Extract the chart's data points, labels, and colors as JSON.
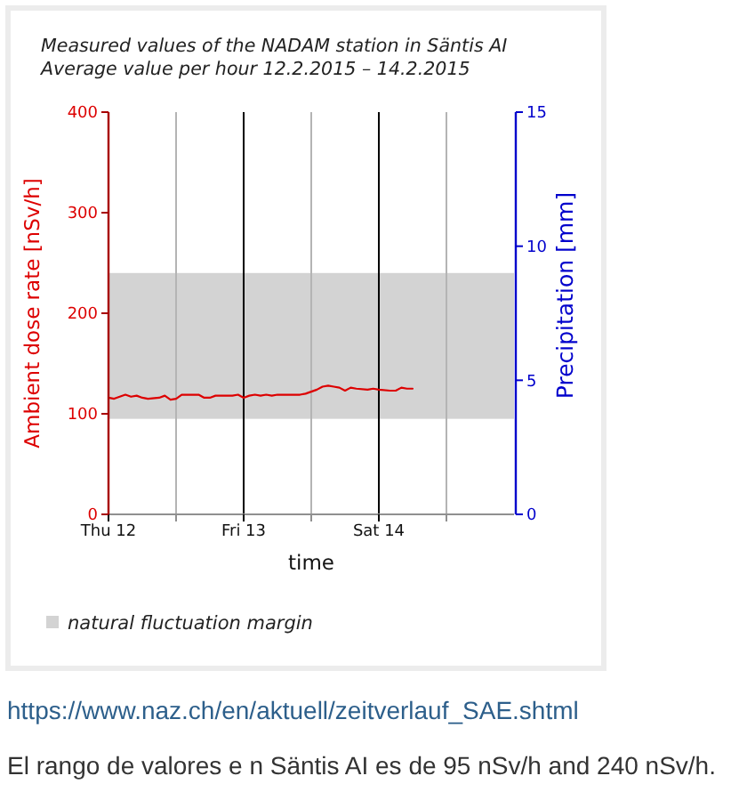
{
  "chart_data": {
    "type": "line",
    "title": "Measured values of the NADAM station in Säntis AI",
    "subtitle": "Average value per hour 12.2.2015 – 14.2.2015",
    "xlabel": "time",
    "ylabel": "Ambient dose rate [nSv/h]",
    "y2label": "Precipitation [mm]",
    "x": [
      "2015-02-12T00:00",
      "2015-02-12T01:00",
      "2015-02-12T02:00",
      "2015-02-12T03:00",
      "2015-02-12T04:00",
      "2015-02-12T05:00",
      "2015-02-12T06:00",
      "2015-02-12T07:00",
      "2015-02-12T09:00",
      "2015-02-12T10:00",
      "2015-02-12T11:00",
      "2015-02-12T12:00",
      "2015-02-12T13:00",
      "2015-02-12T14:00",
      "2015-02-12T16:00",
      "2015-02-12T17:00",
      "2015-02-12T18:00",
      "2015-02-12T19:00",
      "2015-02-12T22:00",
      "2015-02-12T23:00",
      "2015-02-13T00:00",
      "2015-02-13T01:00",
      "2015-02-13T02:00",
      "2015-02-13T03:00",
      "2015-02-13T04:00",
      "2015-02-13T05:00",
      "2015-02-13T06:00",
      "2015-02-13T08:00",
      "2015-02-13T09:00",
      "2015-02-13T10:00",
      "2015-02-13T11:00",
      "2015-02-13T13:00",
      "2015-02-13T14:00",
      "2015-02-13T15:00",
      "2015-02-13T16:00",
      "2015-02-13T17:00",
      "2015-02-13T18:00",
      "2015-02-13T19:00",
      "2015-02-13T20:00",
      "2015-02-13T22:00",
      "2015-02-13T23:00",
      "2015-02-14T00:00",
      "2015-02-14T02:00",
      "2015-02-14T03:00",
      "2015-02-14T04:00",
      "2015-02-14T05:00",
      "2015-02-14T06:00"
    ],
    "values": [
      116,
      115,
      117,
      119,
      117,
      118,
      116,
      115,
      116,
      118,
      114,
      115,
      119,
      119,
      119,
      116,
      116,
      118,
      118,
      119,
      116,
      118,
      119,
      118,
      119,
      118,
      119,
      119,
      119,
      119,
      120,
      124,
      127,
      128,
      127,
      126,
      123,
      126,
      125,
      124,
      125,
      124,
      123,
      123,
      126,
      125,
      125
    ],
    "color": "#dd0000",
    "xlim": [
      "2015-02-12",
      "2015-02-15"
    ],
    "xticks": [
      {
        "value": "2015-02-12",
        "label": "Thu 12"
      },
      {
        "value": "2015-02-12T12:00",
        "label": null
      },
      {
        "value": "2015-02-13",
        "label": "Fri 13"
      },
      {
        "value": "2015-02-13T12:00",
        "label": null
      },
      {
        "value": "2015-02-14",
        "label": "Sat 14"
      },
      {
        "value": "2015-02-14T12:00",
        "label": null
      }
    ],
    "ylim": [
      0,
      400
    ],
    "yticks": [
      0,
      100,
      200,
      300,
      400
    ],
    "y2lim": [
      0,
      15
    ],
    "y2ticks": [
      0,
      5,
      10,
      15
    ],
    "bands": [
      {
        "axis": "y",
        "from": 95,
        "to": 240,
        "label": "natural fluctuation margin",
        "color": "#d3d3d3"
      }
    ],
    "grid": "x",
    "legend": "bottom",
    "annotations": [
      "https://www.naz.ch/en/aktuell/zeitverlauf_SAE.shtml",
      "El rango de valores e n Säntis AI es de 95 nSv/h and 240 nSv/h."
    ]
  }
}
